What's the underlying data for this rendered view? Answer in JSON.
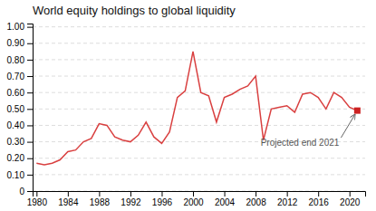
{
  "chart_data": {
    "type": "line",
    "title": "World equity holdings to global liquidity",
    "x": [
      1980,
      1981,
      1982,
      1983,
      1984,
      1985,
      1986,
      1987,
      1988,
      1989,
      1990,
      1991,
      1992,
      1993,
      1994,
      1995,
      1996,
      1997,
      1998,
      1999,
      2000,
      2001,
      2002,
      2003,
      2004,
      2005,
      2006,
      2007,
      2008,
      2009,
      2010,
      2011,
      2012,
      2013,
      2014,
      2015,
      2016,
      2017,
      2018,
      2019,
      2020,
      2021
    ],
    "values": [
      0.17,
      0.16,
      0.17,
      0.19,
      0.24,
      0.25,
      0.3,
      0.32,
      0.41,
      0.4,
      0.33,
      0.31,
      0.3,
      0.34,
      0.42,
      0.33,
      0.29,
      0.36,
      0.57,
      0.61,
      0.85,
      0.6,
      0.58,
      0.42,
      0.57,
      0.59,
      0.62,
      0.64,
      0.7,
      0.31,
      0.5,
      0.51,
      0.52,
      0.48,
      0.59,
      0.6,
      0.57,
      0.5,
      0.6,
      0.57,
      0.51,
      0.49
    ],
    "color": "#d94040",
    "xlim": [
      1979.5,
      2022
    ],
    "xticks": [
      1980,
      1984,
      1988,
      1992,
      1996,
      2000,
      2004,
      2008,
      2012,
      2016,
      2020
    ],
    "ylim": [
      0,
      1.02
    ],
    "yticks": [
      0,
      {
        "value": 0.1,
        "label": "0.10"
      },
      {
        "value": 0.2,
        "label": "0.20"
      },
      {
        "value": 0.3,
        "label": "0.30"
      },
      {
        "value": 0.4,
        "label": "0.40"
      },
      {
        "value": 0.5,
        "label": "0.50"
      },
      {
        "value": 0.6,
        "label": "0.60"
      },
      {
        "value": 0.7,
        "label": "0.70"
      },
      {
        "value": 0.8,
        "label": "0.80"
      },
      {
        "value": 0.9,
        "label": "0.90"
      },
      {
        "value": 1.0,
        "label": "1.00"
      }
    ],
    "grid": "y",
    "annotations": [
      {
        "text": "Projected end 2021",
        "x": 2021,
        "y": 0.49,
        "marker": "square",
        "color": "#cc2222"
      }
    ]
  }
}
